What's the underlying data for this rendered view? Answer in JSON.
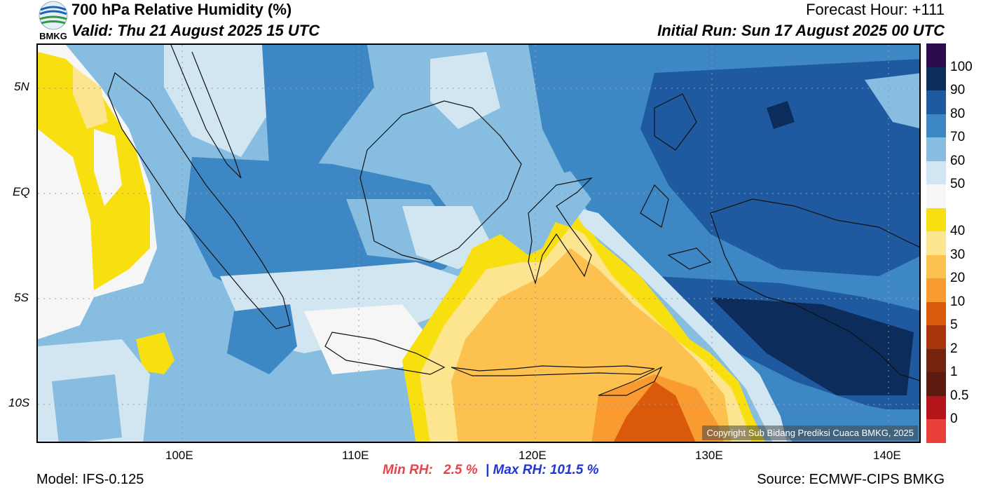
{
  "header": {
    "title": "700 hPa Relative Humidity (%)",
    "valid": "Valid: Thu 21 August 2025 15 UTC",
    "forecast_hour": "Forecast Hour: +111",
    "initial_run": "Initial Run: Sun 17 August 2025 00 UTC",
    "logo_text": "BMKG"
  },
  "axes": {
    "lat_labels": [
      "5N",
      "EQ",
      "5S",
      "10S"
    ],
    "lon_labels": [
      "100E",
      "110E",
      "120E",
      "130E",
      "140E"
    ]
  },
  "colorbar": {
    "labels": [
      "100",
      "90",
      "80",
      "70",
      "60",
      "50",
      "40",
      "30",
      "20",
      "10",
      "5",
      "2",
      "1",
      "0.5",
      "0"
    ],
    "colors": [
      "#2d0a4e",
      "#0c2d5c",
      "#1f5aa0",
      "#3d88c4",
      "#86bde0",
      "#d2e6f1",
      "#f6f6f6",
      "#f8df10",
      "#fde58f",
      "#fdc14f",
      "#f99b30",
      "#d95a0a",
      "#a8360b",
      "#73230e",
      "#5c1a10",
      "#b3151a",
      "#e9413a"
    ]
  },
  "stats": {
    "min_label": "Min RH:",
    "min_value": "2.5 %",
    "separator": "|",
    "max_label": "Max RH:",
    "max_value": "101.5 %"
  },
  "footer": {
    "model": "Model: IFS-0.125",
    "source": "Source: ECMWF-CIPS BMKG",
    "copyright": "Copyright Sub Bidang Prediksi Cuaca BMKG, 2025"
  },
  "palette": {
    "min_color": "#e8434a",
    "max_color": "#2136d6"
  }
}
